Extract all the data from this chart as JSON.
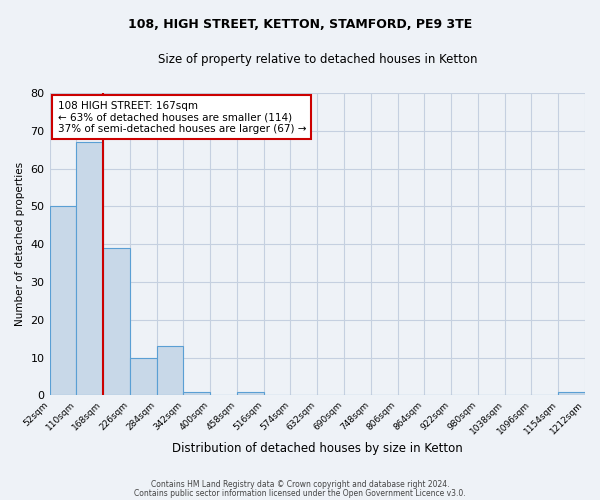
{
  "title1": "108, HIGH STREET, KETTON, STAMFORD, PE9 3TE",
  "title2": "Size of property relative to detached houses in Ketton",
  "xlabel": "Distribution of detached houses by size in Ketton",
  "ylabel": "Number of detached properties",
  "bin_edges": [
    52,
    110,
    168,
    226,
    284,
    342,
    400,
    458,
    516,
    574,
    632,
    690,
    748,
    806,
    864,
    922,
    980,
    1038,
    1096,
    1154,
    1212
  ],
  "bar_heights": [
    50,
    67,
    39,
    10,
    13,
    1,
    0,
    1,
    0,
    0,
    0,
    0,
    0,
    0,
    0,
    0,
    0,
    0,
    0,
    1
  ],
  "bar_color": "#c8d8e8",
  "bar_edge_color": "#5a9fd4",
  "vline_x": 168,
  "vline_color": "#cc0000",
  "ylim": [
    0,
    80
  ],
  "annotation_line1": "108 HIGH STREET: 167sqm",
  "annotation_line2": "← 63% of detached houses are smaller (114)",
  "annotation_line3": "37% of semi-detached houses are larger (67) →",
  "annotation_box_color": "#ffffff",
  "annotation_box_edge_color": "#cc0000",
  "bg_color": "#eef2f7",
  "grid_color": "#c5d0e0",
  "footer1": "Contains HM Land Registry data © Crown copyright and database right 2024.",
  "footer2": "Contains public sector information licensed under the Open Government Licence v3.0."
}
